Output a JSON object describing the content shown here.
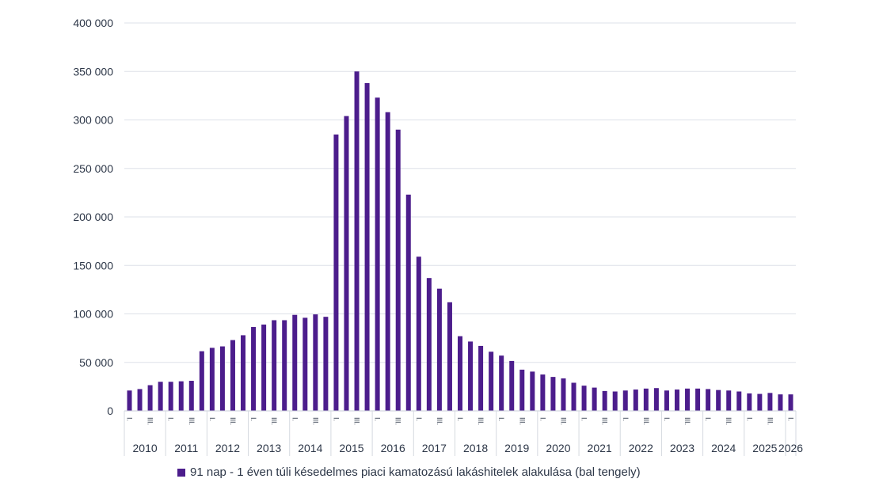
{
  "chart_data": {
    "type": "bar",
    "title": "",
    "xlabel": "",
    "ylabel": "",
    "ylim": [
      0,
      400000
    ],
    "yticks": [
      0,
      50000,
      100000,
      150000,
      200000,
      250000,
      300000,
      350000,
      400000
    ],
    "ytick_labels": [
      "0",
      "50 000",
      "100 000",
      "150 000",
      "200 000",
      "250 000",
      "300 000",
      "350 000",
      "400 000"
    ],
    "grid": true,
    "legend_position": "bottom",
    "color": "#4c1d8c",
    "quarter_labels": [
      "I.",
      "II.",
      "III.",
      "IV."
    ],
    "years": [
      "2010",
      "2011",
      "2012",
      "2013",
      "2014",
      "2015",
      "2016",
      "2017",
      "2018",
      "2019",
      "2020",
      "2021",
      "2022",
      "2023",
      "2024",
      "2025",
      "2026"
    ],
    "series": [
      {
        "name": "91 nap - 1 éven túli késedelmes piaci kamatozású lakáshitelek alakulása (bal tengely)",
        "values": [
          21000,
          22500,
          26500,
          30000,
          30000,
          30500,
          31000,
          61500,
          65000,
          66500,
          73000,
          78000,
          86500,
          89000,
          93500,
          93500,
          99000,
          96000,
          99500,
          97000,
          285000,
          304000,
          350000,
          338000,
          323000,
          308000,
          290000,
          223000,
          159000,
          137000,
          126000,
          112000,
          77000,
          71500,
          67000,
          61000,
          57000,
          51500,
          42500,
          40500,
          37500,
          35000,
          33500,
          29000,
          26000,
          24000,
          20500,
          20000,
          21000,
          22000,
          23000,
          23500,
          21000,
          22000,
          23000,
          23000,
          22500,
          21500,
          21000,
          20000,
          18000,
          17500,
          18500,
          17000,
          17000
        ]
      }
    ]
  }
}
